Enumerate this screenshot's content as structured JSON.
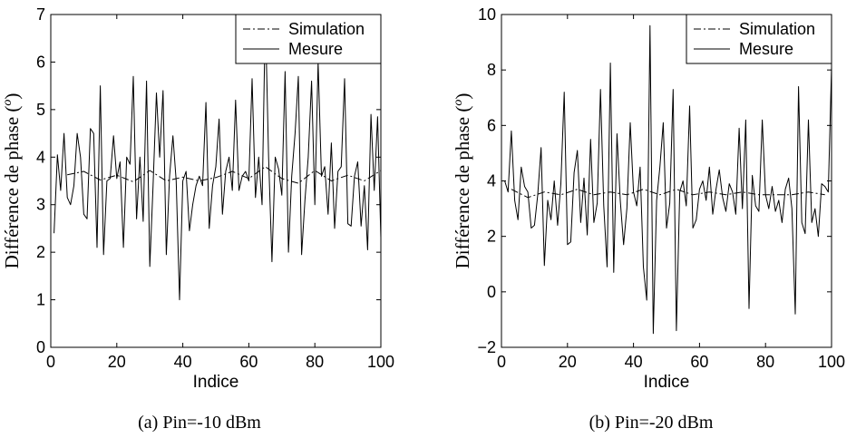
{
  "colors": {
    "line": "#000000",
    "background": "#ffffff"
  },
  "chart_data": [
    {
      "type": "line",
      "caption": "(a) Pin=-10 dBm",
      "xlabel": "Indice",
      "ylabel_main": "Différence de phase (",
      "ylabel_sup": "o",
      "ylabel_end": ")",
      "xlim": [
        0,
        100
      ],
      "ylim": [
        0,
        7
      ],
      "xticks": [
        0,
        20,
        40,
        60,
        80,
        100
      ],
      "yticks": [
        0,
        1,
        2,
        3,
        4,
        5,
        6,
        7
      ],
      "grid": false,
      "legend_position": "top-right",
      "series": [
        {
          "name": "Simulation",
          "style": "dashdot",
          "x": [
            5,
            10,
            15,
            20,
            25,
            30,
            35,
            40,
            45,
            50,
            55,
            60,
            65,
            70,
            75,
            80,
            85,
            90,
            95,
            100
          ],
          "y": [
            3.63,
            3.7,
            3.52,
            3.62,
            3.48,
            3.72,
            3.5,
            3.58,
            3.5,
            3.57,
            3.7,
            3.55,
            3.8,
            3.55,
            3.45,
            3.72,
            3.5,
            3.62,
            3.5,
            3.72
          ]
        },
        {
          "name": "Mesure",
          "style": "solid",
          "x": [
            1,
            2,
            3,
            4,
            5,
            6,
            7,
            8,
            9,
            10,
            11,
            12,
            13,
            14,
            15,
            16,
            17,
            18,
            19,
            20,
            21,
            22,
            23,
            24,
            25,
            26,
            27,
            28,
            29,
            30,
            31,
            32,
            33,
            34,
            35,
            36,
            37,
            38,
            39,
            40,
            41,
            42,
            43,
            44,
            45,
            46,
            47,
            48,
            49,
            50,
            51,
            52,
            53,
            54,
            55,
            56,
            57,
            58,
            59,
            60,
            61,
            62,
            63,
            64,
            65,
            66,
            67,
            68,
            69,
            70,
            71,
            72,
            73,
            74,
            75,
            76,
            77,
            78,
            79,
            80,
            81,
            82,
            83,
            84,
            85,
            86,
            87,
            88,
            89,
            90,
            91,
            92,
            93,
            94,
            95,
            96,
            97,
            98,
            99,
            100
          ],
          "y": [
            2.4,
            4.05,
            3.3,
            4.5,
            3.15,
            3.0,
            3.4,
            4.5,
            4.0,
            2.8,
            2.7,
            4.6,
            4.5,
            2.1,
            5.5,
            1.95,
            3.5,
            3.55,
            4.45,
            3.55,
            3.9,
            2.1,
            4.0,
            3.85,
            5.7,
            2.7,
            4.0,
            2.65,
            5.6,
            1.7,
            3.4,
            5.35,
            4.0,
            5.4,
            1.95,
            3.6,
            4.45,
            3.5,
            1.0,
            3.5,
            3.7,
            2.45,
            3.0,
            3.4,
            3.6,
            3.4,
            5.15,
            2.5,
            3.4,
            3.8,
            4.8,
            2.8,
            3.7,
            4.0,
            3.3,
            5.2,
            3.3,
            3.6,
            3.7,
            3.5,
            5.65,
            3.15,
            4.0,
            3.0,
            7.0,
            4.0,
            1.8,
            4.0,
            3.75,
            3.2,
            5.8,
            2.0,
            3.6,
            4.5,
            5.7,
            1.95,
            3.1,
            4.0,
            5.6,
            3.0,
            6.0,
            3.6,
            3.8,
            2.8,
            4.3,
            2.5,
            3.7,
            3.8,
            5.65,
            2.6,
            2.55,
            3.6,
            3.9,
            2.55,
            3.4,
            2.05,
            4.9,
            3.3,
            4.85,
            2.3
          ]
        }
      ]
    },
    {
      "type": "line",
      "caption": "(b) Pin=-20 dBm",
      "xlabel": "Indice",
      "ylabel_main": "Différence de phase (",
      "ylabel_sup": "o",
      "ylabel_end": ")",
      "xlim": [
        0,
        100
      ],
      "ylim": [
        -2,
        10
      ],
      "xticks": [
        0,
        20,
        40,
        60,
        80,
        100
      ],
      "yticks": [
        -2,
        0,
        2,
        4,
        6,
        8,
        10
      ],
      "grid": false,
      "legend_position": "top-right",
      "series": [
        {
          "name": "Simulation",
          "style": "dashdot",
          "x": [
            3,
            8,
            13,
            18,
            23,
            28,
            33,
            38,
            43,
            48,
            53,
            58,
            63,
            68,
            73,
            78,
            83,
            88,
            93,
            98
          ],
          "y": [
            3.7,
            3.4,
            3.6,
            3.5,
            3.7,
            3.5,
            3.6,
            3.5,
            3.7,
            3.5,
            3.7,
            3.5,
            3.6,
            3.5,
            3.6,
            3.5,
            3.5,
            3.5,
            3.6,
            3.5
          ]
        },
        {
          "name": "Mesure",
          "style": "solid",
          "x": [
            1,
            2,
            3,
            4,
            5,
            6,
            7,
            8,
            9,
            10,
            11,
            12,
            13,
            14,
            15,
            16,
            17,
            18,
            19,
            20,
            21,
            22,
            23,
            24,
            25,
            26,
            27,
            28,
            29,
            30,
            31,
            32,
            33,
            34,
            35,
            36,
            37,
            38,
            39,
            40,
            41,
            42,
            43,
            44,
            45,
            46,
            47,
            48,
            49,
            50,
            51,
            52,
            53,
            54,
            55,
            56,
            57,
            58,
            59,
            60,
            61,
            62,
            63,
            64,
            65,
            66,
            67,
            68,
            69,
            70,
            71,
            72,
            73,
            74,
            75,
            76,
            77,
            78,
            79,
            80,
            81,
            82,
            83,
            84,
            85,
            86,
            87,
            88,
            89,
            90,
            91,
            92,
            93,
            94,
            95,
            96,
            97,
            98,
            99,
            100
          ],
          "y": [
            4.0,
            3.6,
            5.8,
            3.3,
            2.6,
            4.5,
            3.8,
            3.6,
            2.3,
            2.4,
            3.5,
            5.2,
            0.95,
            3.3,
            2.6,
            4.0,
            2.4,
            3.9,
            7.2,
            1.7,
            1.8,
            4.3,
            5.1,
            2.5,
            4.1,
            2.05,
            5.5,
            2.5,
            3.2,
            7.3,
            3.1,
            0.9,
            8.25,
            0.7,
            5.7,
            3.3,
            1.7,
            3.0,
            6.1,
            3.6,
            3.1,
            4.5,
            0.9,
            -0.3,
            9.6,
            -1.5,
            3.3,
            4.5,
            6.1,
            2.3,
            3.2,
            7.3,
            -1.4,
            3.6,
            4.0,
            3.1,
            6.7,
            2.3,
            2.6,
            3.7,
            4.0,
            3.3,
            4.5,
            2.8,
            3.7,
            4.4,
            3.4,
            2.9,
            3.9,
            3.6,
            2.8,
            5.9,
            3.0,
            6.2,
            -0.6,
            4.2,
            3.1,
            2.9,
            6.2,
            3.5,
            3.0,
            3.8,
            2.9,
            3.3,
            2.5,
            3.7,
            4.1,
            3.0,
            -0.8,
            7.4,
            2.5,
            2.1,
            6.2,
            2.5,
            3.0,
            2.0,
            3.9,
            3.8,
            3.6,
            8.1
          ]
        }
      ]
    }
  ]
}
